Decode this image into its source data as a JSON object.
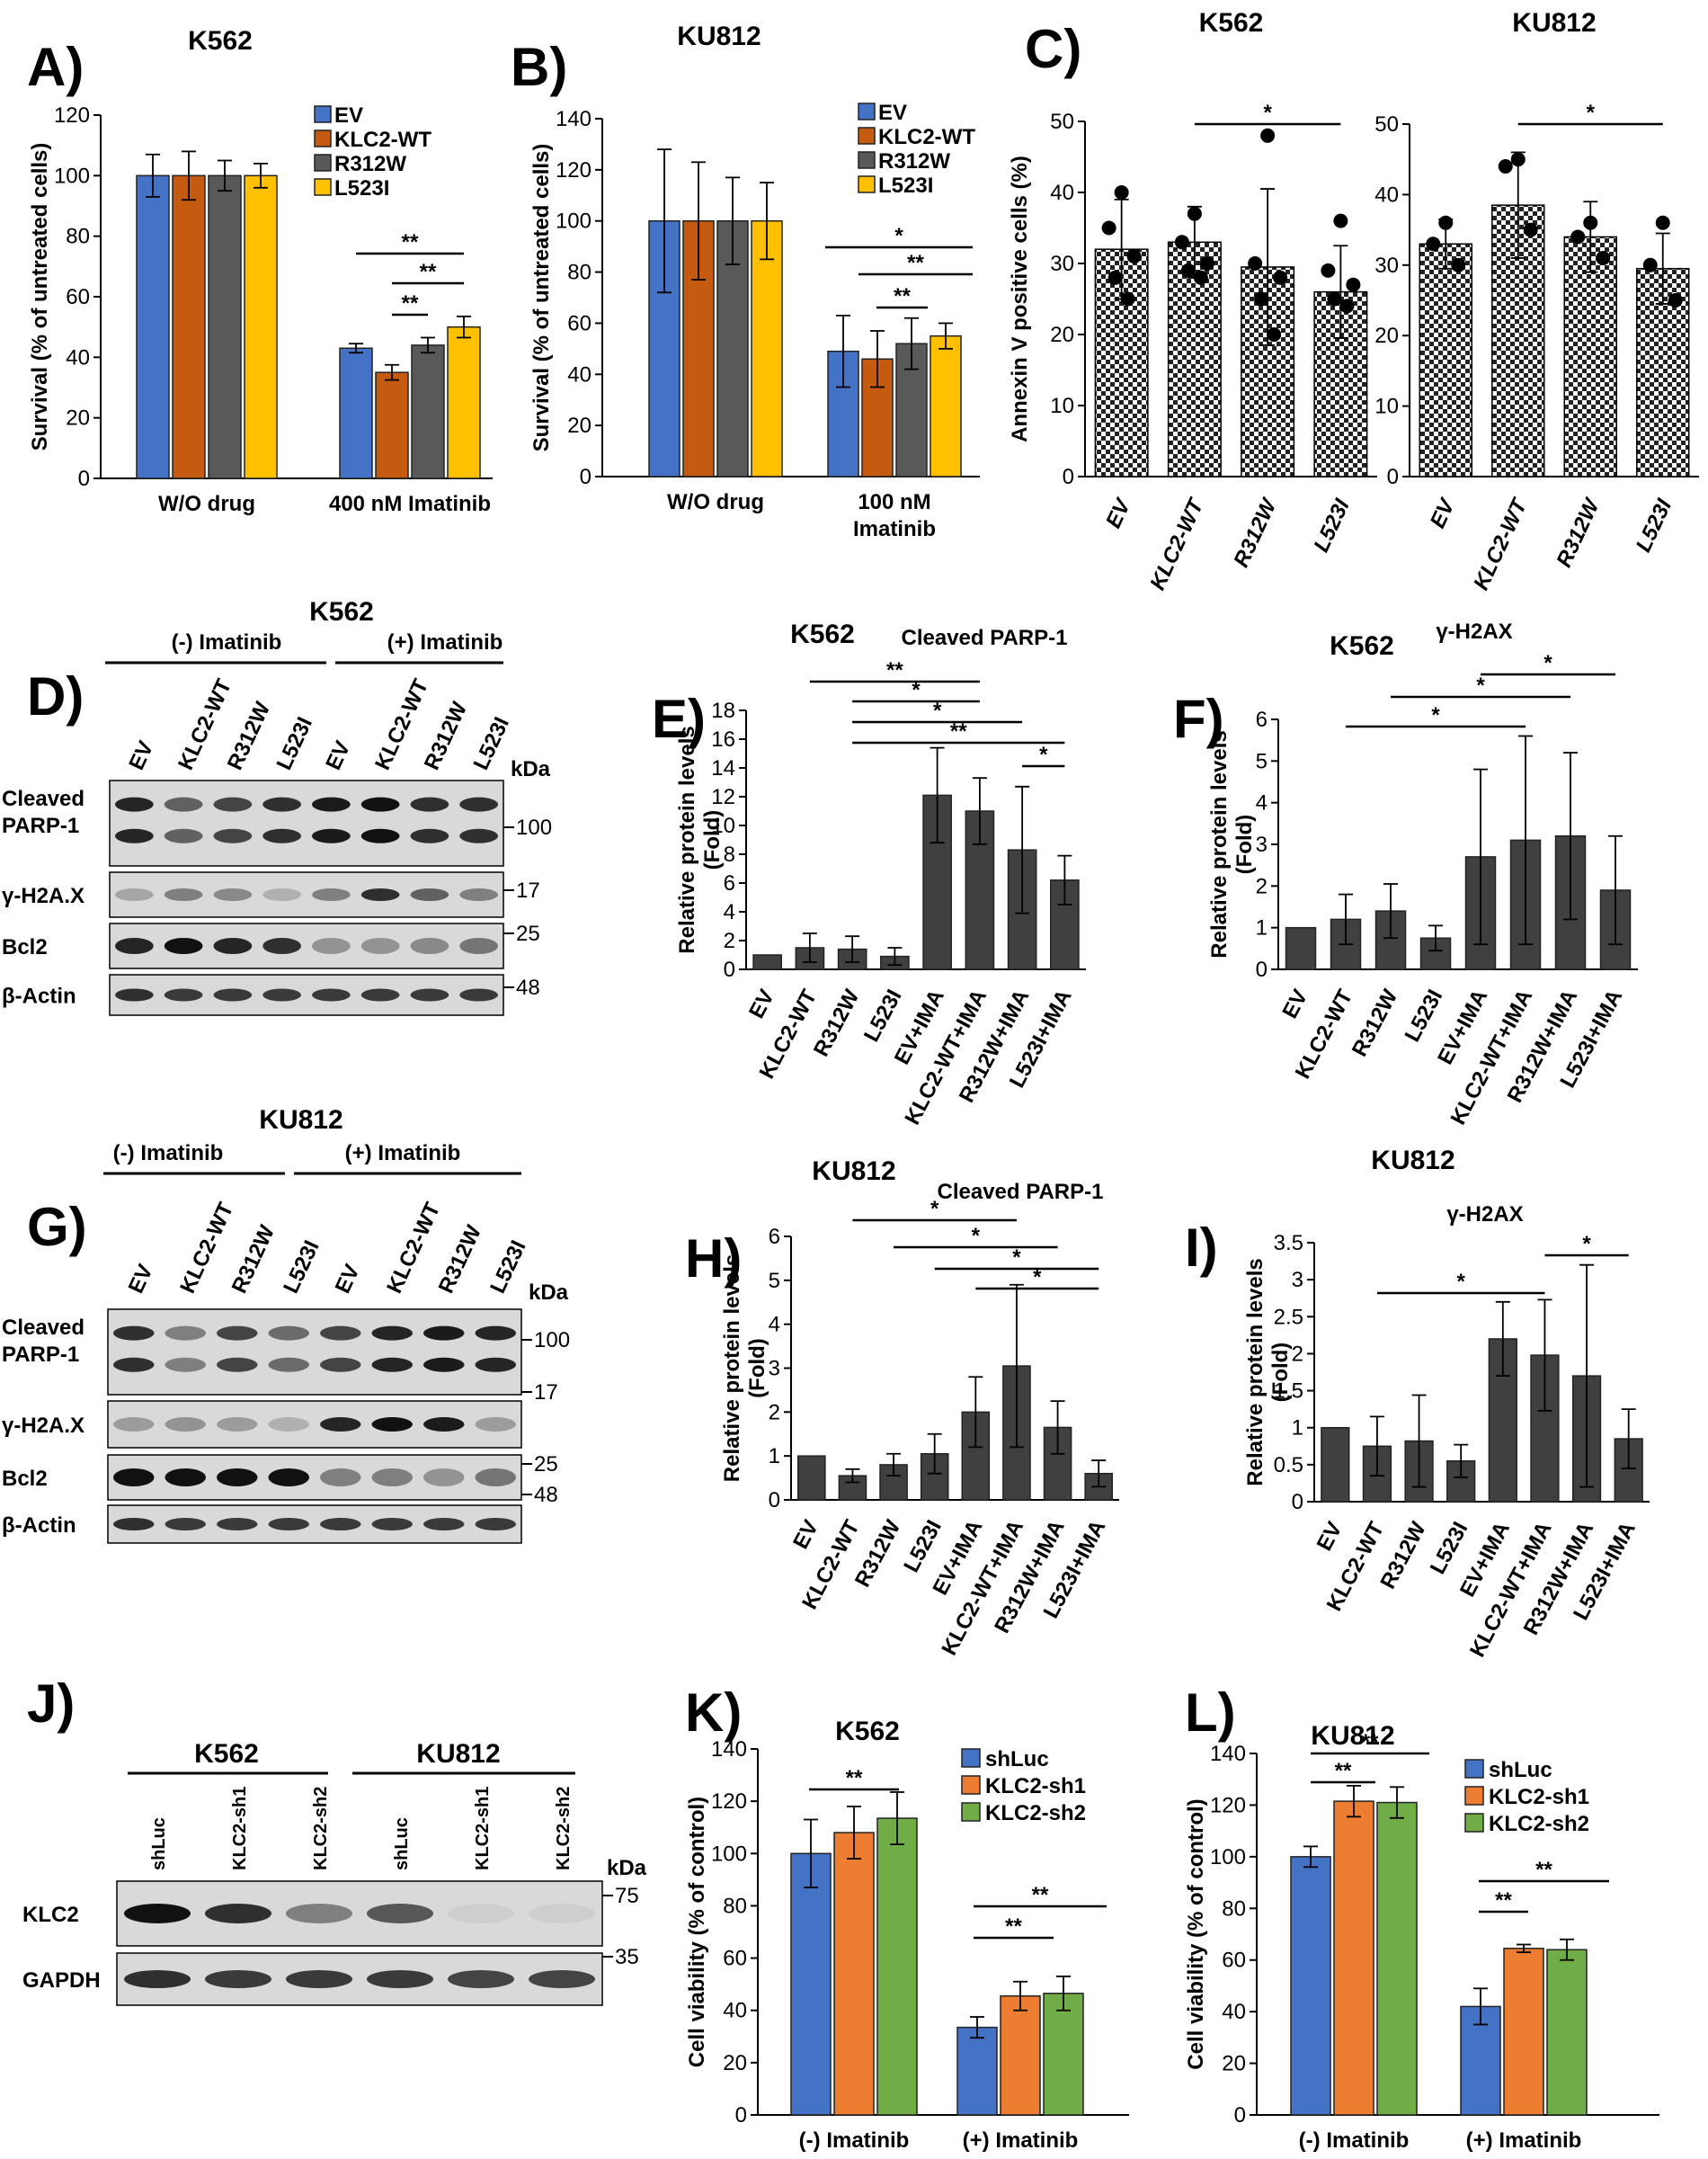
{
  "colors": {
    "ev": "#4472C4",
    "wt": "#C55A11",
    "r312": "#595959",
    "l523": "#FFC000",
    "dark": "#404040",
    "sh1": "#ED7D31",
    "sh2": "#70AD47",
    "blot_bg": "#d9d9d9"
  },
  "panels": {
    "A": "A)",
    "B": "B)",
    "C": "C)",
    "D": "D)",
    "E": "E)",
    "F": "F)",
    "G": "G)",
    "H": "H)",
    "I": "I)",
    "J": "J)",
    "K": "K)",
    "L": "L)"
  },
  "chart_data": [
    {
      "id": "A",
      "type": "bar",
      "title": "K562",
      "ylabel": "Survival (% of untreated cells)",
      "ylim": [
        0,
        120
      ],
      "yticks": [
        0,
        20,
        40,
        60,
        80,
        100,
        120
      ],
      "categories": [
        "W/O drug",
        "400 nM Imatinib"
      ],
      "series": [
        {
          "name": "EV",
          "values": [
            100,
            43
          ],
          "err": [
            7,
            1.5
          ]
        },
        {
          "name": "KLC2-WT",
          "values": [
            100,
            35
          ],
          "err": [
            8,
            2.5
          ]
        },
        {
          "name": "R312W",
          "values": [
            100,
            44
          ],
          "err": [
            5,
            2.5
          ]
        },
        {
          "name": "L523I",
          "values": [
            100,
            50
          ],
          "err": [
            4,
            3.5
          ]
        }
      ],
      "sig": [
        "**",
        "**",
        "**"
      ]
    },
    {
      "id": "B",
      "type": "bar",
      "title": "KU812",
      "ylabel": "Survival (% of untreated cells)",
      "ylim": [
        0,
        140
      ],
      "yticks": [
        0,
        20,
        40,
        60,
        80,
        100,
        120,
        140
      ],
      "categories": [
        "W/O drug",
        "100 nM Imatinib"
      ],
      "series": [
        {
          "name": "EV",
          "values": [
            100,
            49
          ],
          "err": [
            28,
            14
          ]
        },
        {
          "name": "KLC2-WT",
          "values": [
            100,
            46
          ],
          "err": [
            23,
            11
          ]
        },
        {
          "name": "R312W",
          "values": [
            100,
            52
          ],
          "err": [
            17,
            10
          ]
        },
        {
          "name": "L523I",
          "values": [
            100,
            55
          ],
          "err": [
            15,
            5
          ]
        }
      ],
      "sig": [
        "*",
        "**",
        "**"
      ]
    },
    {
      "id": "C1",
      "type": "bar",
      "title": "K562",
      "ylabel": "Annexin V positive cells (%)",
      "ylim": [
        0,
        50
      ],
      "yticks": [
        0,
        10,
        20,
        30,
        40,
        50
      ],
      "categories": [
        "EV",
        "KLC2-WT",
        "R312W",
        "L523I"
      ],
      "values": [
        32,
        33,
        29.5,
        26
      ],
      "err": [
        7,
        5,
        11,
        6.5
      ],
      "points": [
        [
          40,
          35,
          31,
          28,
          25
        ],
        [
          37,
          33,
          30,
          29,
          28
        ],
        [
          48,
          30,
          28,
          25,
          20
        ],
        [
          36,
          29,
          27,
          25,
          24
        ]
      ],
      "sig": [
        "*"
      ]
    },
    {
      "id": "C2",
      "type": "bar",
      "title": "KU812",
      "ylabel": "",
      "ylim": [
        0,
        50
      ],
      "yticks": [
        0,
        10,
        20,
        30,
        40,
        50
      ],
      "categories": [
        "EV",
        "KLC2-WT",
        "R312W",
        "L523I"
      ],
      "values": [
        33,
        38.5,
        34,
        29.5
      ],
      "err": [
        3.5,
        7.5,
        5,
        5
      ],
      "points": [
        [
          36,
          33,
          30
        ],
        [
          45,
          44,
          35
        ],
        [
          36,
          34,
          31
        ],
        [
          36,
          30,
          25
        ]
      ],
      "sig": [
        "*"
      ]
    },
    {
      "id": "E",
      "type": "bar",
      "title": "K562",
      "subtitle": "Cleaved PARP-1",
      "ylabel": "Relative protein levels (Fold)",
      "ylim": [
        0,
        18
      ],
      "yticks": [
        0,
        2,
        4,
        6,
        8,
        10,
        12,
        14,
        16,
        18
      ],
      "categories": [
        "EV",
        "KLC2-WT",
        "R312W",
        "L523I",
        "EV+IMA",
        "KLC2-WT+IMA",
        "R312W+IMA",
        "L523I+IMA"
      ],
      "values": [
        1,
        1.5,
        1.4,
        0.9,
        12.1,
        11,
        8.3,
        6.2
      ],
      "err": [
        0,
        1,
        0.9,
        0.6,
        3.3,
        2.3,
        4.4,
        1.7
      ],
      "sig": [
        "**",
        "*",
        "*",
        "**",
        "*"
      ]
    },
    {
      "id": "F",
      "type": "bar",
      "title": "K562",
      "subtitle": "γ-H2AX",
      "ylabel": "Relative protein levels (Fold)",
      "ylim": [
        0,
        6
      ],
      "yticks": [
        0,
        1,
        2,
        3,
        4,
        5,
        6
      ],
      "categories": [
        "EV",
        "KLC2-WT",
        "R312W",
        "L523I",
        "EV+IMA",
        "KLC2-WT+IMA",
        "R312W+IMA",
        "L523I+IMA"
      ],
      "values": [
        1,
        1.2,
        1.4,
        0.75,
        2.7,
        3.1,
        3.2,
        1.9
      ],
      "err": [
        0,
        0.6,
        0.65,
        0.3,
        2.1,
        2.5,
        2,
        1.3
      ],
      "sig": [
        "*",
        "*",
        "*"
      ]
    },
    {
      "id": "H",
      "type": "bar",
      "title": "KU812",
      "subtitle": "Cleaved PARP-1",
      "ylabel": "Relative protein levels (Fold)",
      "ylim": [
        0,
        6
      ],
      "yticks": [
        0,
        1,
        2,
        3,
        4,
        5,
        6
      ],
      "categories": [
        "EV",
        "KLC2-WT",
        "R312W",
        "L523I",
        "EV+IMA",
        "KLC2-WT+IMA",
        "R312W+IMA",
        "L523I+IMA"
      ],
      "values": [
        1,
        0.55,
        0.8,
        1.05,
        2,
        3.05,
        1.65,
        0.6
      ],
      "err": [
        0,
        0.15,
        0.25,
        0.45,
        0.8,
        1.85,
        0.6,
        0.3
      ],
      "sig": [
        "*",
        "*",
        "*",
        "*"
      ]
    },
    {
      "id": "I",
      "type": "bar",
      "title": "KU812",
      "subtitle": "γ-H2AX",
      "ylabel": "Relative protein levels (Fold)",
      "ylim": [
        0,
        3.5
      ],
      "yticks": [
        0,
        0.5,
        1,
        1.5,
        2,
        2.5,
        3,
        3.5
      ],
      "categories": [
        "EV",
        "KLC2-WT",
        "R312W",
        "L523I",
        "EV+IMA",
        "KLC2-WT+IMA",
        "R312W+IMA",
        "L523I+IMA"
      ],
      "values": [
        1,
        0.75,
        0.82,
        0.55,
        2.2,
        1.98,
        1.7,
        0.85
      ],
      "err": [
        0,
        0.4,
        0.62,
        0.22,
        0.5,
        0.75,
        1.5,
        0.4
      ],
      "sig": [
        "*",
        "*"
      ]
    },
    {
      "id": "K",
      "type": "bar",
      "title": "K562",
      "ylabel": "Cell viability (% of control)",
      "ylim": [
        0,
        140
      ],
      "yticks": [
        0,
        20,
        40,
        60,
        80,
        100,
        120,
        140
      ],
      "categories": [
        "(-) Imatinib",
        "(+) Imatinib"
      ],
      "series": [
        {
          "name": "shLuc",
          "values": [
            100,
            33.5
          ],
          "err": [
            13,
            4
          ]
        },
        {
          "name": "KLC2-sh1",
          "values": [
            108,
            45.5
          ],
          "err": [
            10,
            5.5
          ]
        },
        {
          "name": "KLC2-sh2",
          "values": [
            113.5,
            46.5
          ],
          "err": [
            10,
            6.5
          ]
        }
      ],
      "sig": [
        "**",
        "**",
        "**"
      ]
    },
    {
      "id": "L",
      "type": "bar",
      "title": "KU812",
      "ylabel": "Cell viability (% of control)",
      "ylim": [
        0,
        140
      ],
      "yticks": [
        0,
        20,
        40,
        60,
        80,
        100,
        120,
        140
      ],
      "categories": [
        "(-) Imatinib",
        "(+) Imatinib"
      ],
      "series": [
        {
          "name": "shLuc",
          "values": [
            100,
            42
          ],
          "err": [
            4,
            7
          ]
        },
        {
          "name": "KLC2-sh1",
          "values": [
            121.5,
            64.5
          ],
          "err": [
            6,
            1.5
          ]
        },
        {
          "name": "KLC2-sh2",
          "values": [
            121,
            64
          ],
          "err": [
            6,
            4
          ]
        }
      ],
      "sig": [
        "**",
        "**",
        "**",
        "**"
      ]
    }
  ],
  "blots": {
    "D": {
      "title": "K562",
      "minus": "(-) Imatinib",
      "plus": "(+) Imatinib",
      "lanes": [
        "EV",
        "KLC2-WT",
        "R312W",
        "L523I",
        "EV",
        "KLC2-WT",
        "R312W",
        "L523I"
      ],
      "rows": [
        "Cleaved\nPARP-1",
        "γ-H2A.X",
        "Bcl2",
        "β-Actin"
      ],
      "kda_label": "kDa",
      "kda": [
        "100",
        "17",
        "25",
        "48"
      ]
    },
    "G": {
      "title": "KU812",
      "minus": "(-) Imatinib",
      "plus": "(+) Imatinib",
      "lanes": [
        "EV",
        "KLC2-WT",
        "R312W",
        "L523I",
        "EV",
        "KLC2-WT",
        "R312W",
        "L523I"
      ],
      "rows": [
        "Cleaved\nPARP-1",
        "γ-H2A.X",
        "Bcl2",
        "β-Actin"
      ],
      "kda_label": "kDa",
      "kda": [
        "100",
        "17",
        "25",
        "48"
      ]
    },
    "J": {
      "left": "K562",
      "right": "KU812",
      "lanes": [
        "shLuc",
        "KLC2-sh1",
        "KLC2-sh2",
        "shLuc",
        "KLC2-sh1",
        "KLC2-sh2"
      ],
      "rows": [
        "KLC2",
        "GAPDH"
      ],
      "kda_label": "kDa",
      "kda": [
        "75",
        "35"
      ]
    }
  }
}
